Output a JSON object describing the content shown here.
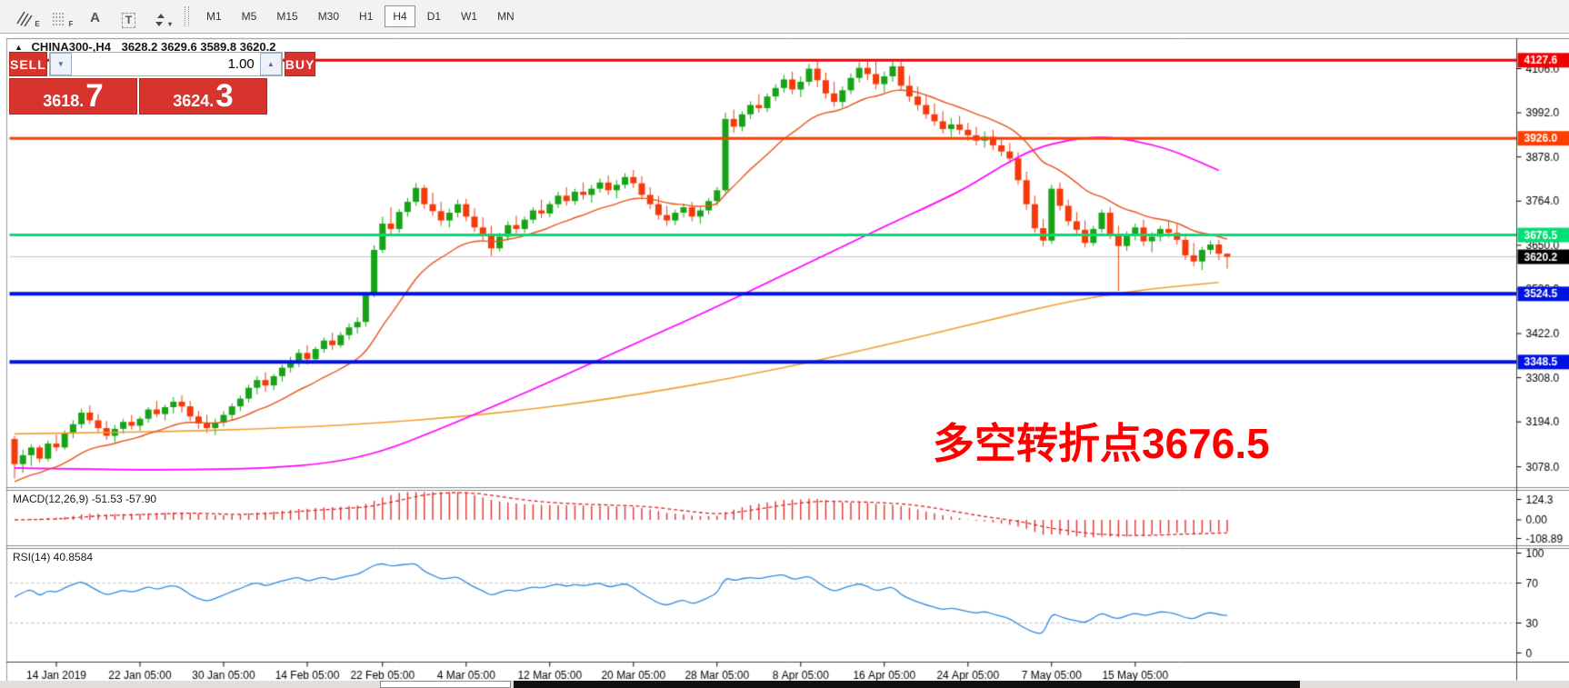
{
  "toolbar": {
    "icons": [
      {
        "name": "equidistant-channel-icon",
        "sub": "E"
      },
      {
        "name": "fibonacci-grid-icon",
        "sub": "F"
      },
      {
        "name": "text-label-icon",
        "glyph": "A"
      },
      {
        "name": "text-box-icon",
        "glyph": "T"
      },
      {
        "name": "arrange-objects-icon",
        "caret": "▾"
      }
    ],
    "timeframes": [
      "M1",
      "M5",
      "M15",
      "M30",
      "H1",
      "H4",
      "D1",
      "W1",
      "MN"
    ],
    "active_timeframe": "H4"
  },
  "chart_title": {
    "collapse_icon": "▲",
    "symbol_tf": "CHINA300-,H4",
    "ohlc": "3628.2 3629.6 3589.8 3620.2"
  },
  "trade_panel": {
    "sell_label": "SELL",
    "buy_label": "BUY",
    "volume": "1.00",
    "volume_down_icon": "▼",
    "volume_up_icon": "▲",
    "sell_price": {
      "main": "3618.",
      "pips": "7"
    },
    "buy_price": {
      "main": "3624.",
      "pips": "3"
    }
  },
  "annotation": {
    "text": "多空转折点3676.5",
    "color": "#ff0000"
  },
  "indicators": {
    "macd_label": "MACD(12,26,9) -51.53 -57.90",
    "rsi_label": "RSI(14) 40.8584",
    "macd_axis": {
      "labels": [
        "124.3",
        "0.00",
        "-108.89"
      ],
      "values": [
        124.3,
        0,
        -108.89
      ]
    },
    "rsi_axis": {
      "labels": [
        "100",
        "70",
        "30",
        "0"
      ],
      "values": [
        100,
        70,
        30,
        0
      ]
    }
  },
  "price_axis": {
    "ticks": [
      {
        "label": "4106.0",
        "value": 4106.0
      },
      {
        "label": "3992.0",
        "value": 3992.0
      },
      {
        "label": "3878.0",
        "value": 3878.0
      },
      {
        "label": "3764.0",
        "value": 3764.0
      },
      {
        "label": "3650.0",
        "value": 3650.0
      },
      {
        "label": "3536.0",
        "value": 3536.0
      },
      {
        "label": "3422.0",
        "value": 3422.0
      },
      {
        "label": "3308.0",
        "value": 3308.0
      },
      {
        "label": "3194.0",
        "value": 3194.0
      },
      {
        "label": "3078.0",
        "value": 3078.0
      }
    ],
    "badges": [
      {
        "label": "4127.6",
        "value": 4127.6,
        "bg": "#f00000",
        "fg": "#ffffff"
      },
      {
        "label": "3926.0",
        "value": 3926.0,
        "bg": "#ff3d00",
        "fg": "#ffffff"
      },
      {
        "label": "3676.5",
        "value": 3676.5,
        "bg": "#00df75",
        "fg": "#ffffff"
      },
      {
        "label": "3620.2",
        "value": 3620.2,
        "bg": "#000000",
        "fg": "#ffffff"
      },
      {
        "label": "3524.5",
        "value": 3524.5,
        "bg": "#0012e0",
        "fg": "#ffffff"
      },
      {
        "label": "3348.5",
        "value": 3348.5,
        "bg": "#0012e0",
        "fg": "#ffffff"
      }
    ]
  },
  "time_axis": {
    "labels": [
      "14 Jan 2019",
      "22 Jan 05:00",
      "30 Jan 05:00",
      "14 Feb 05:00",
      "22 Feb 05:00",
      "4 Mar 05:00",
      "12 Mar 05:00",
      "20 Mar 05:00",
      "28 Mar 05:00",
      "8 Apr 05:00",
      "16 Apr 05:00",
      "24 Apr 05:00",
      "7 May 05:00",
      "15 May 05:00"
    ],
    "tick_bars": [
      5,
      15,
      25,
      35,
      44,
      54,
      64,
      74,
      84,
      94,
      104,
      114,
      124,
      134
    ]
  },
  "chart_data": {
    "type": "candlestick",
    "symbol": "CHINA300-",
    "timeframe": "H4",
    "last_ohlc": {
      "open": 3628.2,
      "high": 3629.6,
      "low": 3589.8,
      "close": 3620.2
    },
    "candle_up_color": "#17a317",
    "candle_down_color": "#f53a0a",
    "candles": [
      [
        3150,
        3158,
        3048,
        3085
      ],
      [
        3085,
        3122,
        3062,
        3108
      ],
      [
        3108,
        3136,
        3080,
        3128
      ],
      [
        3128,
        3134,
        3089,
        3099
      ],
      [
        3099,
        3146,
        3092,
        3138
      ],
      [
        3138,
        3162,
        3118,
        3128
      ],
      [
        3128,
        3172,
        3122,
        3164
      ],
      [
        3164,
        3198,
        3152,
        3188
      ],
      [
        3188,
        3228,
        3178,
        3218
      ],
      [
        3218,
        3236,
        3188,
        3198
      ],
      [
        3198,
        3214,
        3168,
        3178
      ],
      [
        3178,
        3196,
        3148,
        3158
      ],
      [
        3158,
        3186,
        3142,
        3176
      ],
      [
        3176,
        3202,
        3164,
        3194
      ],
      [
        3194,
        3212,
        3174,
        3184
      ],
      [
        3184,
        3208,
        3170,
        3202
      ],
      [
        3202,
        3232,
        3192,
        3226
      ],
      [
        3226,
        3248,
        3206,
        3214
      ],
      [
        3214,
        3238,
        3198,
        3232
      ],
      [
        3232,
        3258,
        3216,
        3246
      ],
      [
        3246,
        3262,
        3218,
        3234
      ],
      [
        3234,
        3248,
        3196,
        3208
      ],
      [
        3208,
        3222,
        3176,
        3190
      ],
      [
        3190,
        3212,
        3166,
        3178
      ],
      [
        3178,
        3202,
        3160,
        3192
      ],
      [
        3192,
        3222,
        3182,
        3212
      ],
      [
        3212,
        3242,
        3198,
        3234
      ],
      [
        3234,
        3262,
        3222,
        3254
      ],
      [
        3254,
        3290,
        3244,
        3282
      ],
      [
        3282,
        3312,
        3266,
        3302
      ],
      [
        3302,
        3322,
        3272,
        3288
      ],
      [
        3288,
        3318,
        3276,
        3312
      ],
      [
        3312,
        3342,
        3298,
        3334
      ],
      [
        3334,
        3362,
        3322,
        3352
      ],
      [
        3352,
        3382,
        3336,
        3372
      ],
      [
        3372,
        3392,
        3342,
        3356
      ],
      [
        3356,
        3388,
        3346,
        3382
      ],
      [
        3382,
        3412,
        3372,
        3404
      ],
      [
        3404,
        3424,
        3380,
        3392
      ],
      [
        3392,
        3426,
        3386,
        3418
      ],
      [
        3418,
        3448,
        3406,
        3438
      ],
      [
        3438,
        3464,
        3422,
        3452
      ],
      [
        3452,
        3530,
        3440,
        3524
      ],
      [
        3524,
        3650,
        3516,
        3638
      ],
      [
        3638,
        3724,
        3630,
        3706
      ],
      [
        3706,
        3748,
        3676,
        3692
      ],
      [
        3692,
        3744,
        3682,
        3736
      ],
      [
        3736,
        3772,
        3724,
        3762
      ],
      [
        3762,
        3810,
        3752,
        3798
      ],
      [
        3798,
        3806,
        3744,
        3756
      ],
      [
        3756,
        3786,
        3726,
        3738
      ],
      [
        3738,
        3762,
        3700,
        3714
      ],
      [
        3714,
        3744,
        3696,
        3734
      ],
      [
        3734,
        3768,
        3722,
        3756
      ],
      [
        3756,
        3770,
        3712,
        3724
      ],
      [
        3724,
        3746,
        3684,
        3696
      ],
      [
        3696,
        3722,
        3660,
        3674
      ],
      [
        3674,
        3700,
        3622,
        3642
      ],
      [
        3642,
        3682,
        3634,
        3672
      ],
      [
        3672,
        3712,
        3662,
        3702
      ],
      [
        3702,
        3726,
        3678,
        3692
      ],
      [
        3692,
        3724,
        3682,
        3716
      ],
      [
        3716,
        3748,
        3706,
        3740
      ],
      [
        3740,
        3768,
        3720,
        3732
      ],
      [
        3732,
        3764,
        3722,
        3756
      ],
      [
        3756,
        3788,
        3746,
        3778
      ],
      [
        3778,
        3800,
        3752,
        3764
      ],
      [
        3764,
        3796,
        3754,
        3788
      ],
      [
        3788,
        3812,
        3768,
        3780
      ],
      [
        3780,
        3806,
        3760,
        3796
      ],
      [
        3796,
        3822,
        3786,
        3812
      ],
      [
        3812,
        3830,
        3780,
        3792
      ],
      [
        3792,
        3818,
        3772,
        3806
      ],
      [
        3806,
        3836,
        3796,
        3826
      ],
      [
        3826,
        3844,
        3798,
        3810
      ],
      [
        3810,
        3828,
        3768,
        3780
      ],
      [
        3780,
        3800,
        3744,
        3756
      ],
      [
        3756,
        3778,
        3716,
        3728
      ],
      [
        3728,
        3752,
        3700,
        3714
      ],
      [
        3714,
        3742,
        3702,
        3734
      ],
      [
        3734,
        3758,
        3722,
        3748
      ],
      [
        3748,
        3762,
        3712,
        3724
      ],
      [
        3724,
        3748,
        3706,
        3740
      ],
      [
        3740,
        3772,
        3730,
        3764
      ],
      [
        3764,
        3800,
        3752,
        3792
      ],
      [
        3792,
        3992,
        3786,
        3976
      ],
      [
        3976,
        4000,
        3940,
        3956
      ],
      [
        3956,
        3996,
        3944,
        3988
      ],
      [
        3988,
        4022,
        3976,
        4012
      ],
      [
        4012,
        4040,
        3992,
        4004
      ],
      [
        4004,
        4042,
        3994,
        4034
      ],
      [
        4034,
        4066,
        4022,
        4056
      ],
      [
        4056,
        4090,
        4044,
        4078
      ],
      [
        4078,
        4098,
        4040,
        4052
      ],
      [
        4052,
        4086,
        4032,
        4072
      ],
      [
        4072,
        4118,
        4062,
        4106
      ],
      [
        4106,
        4127,
        4058,
        4076
      ],
      [
        4076,
        4096,
        4028,
        4042
      ],
      [
        4042,
        4072,
        4008,
        4020
      ],
      [
        4020,
        4060,
        4006,
        4050
      ],
      [
        4050,
        4094,
        4040,
        4082
      ],
      [
        4082,
        4122,
        4070,
        4108
      ],
      [
        4108,
        4130,
        4076,
        4092
      ],
      [
        4092,
        4126,
        4052,
        4066
      ],
      [
        4066,
        4098,
        4044,
        4086
      ],
      [
        4086,
        4127,
        4072,
        4112
      ],
      [
        4112,
        4124,
        4050,
        4062
      ],
      [
        4062,
        4088,
        4020,
        4034
      ],
      [
        4034,
        4060,
        3998,
        4012
      ],
      [
        4012,
        4038,
        3976,
        3988
      ],
      [
        3988,
        4016,
        3958,
        3970
      ],
      [
        3970,
        3996,
        3938,
        3950
      ],
      [
        3950,
        3978,
        3930,
        3962
      ],
      [
        3962,
        3984,
        3936,
        3948
      ],
      [
        3948,
        3966,
        3920,
        3934
      ],
      [
        3934,
        3956,
        3908,
        3920
      ],
      [
        3920,
        3944,
        3902,
        3930
      ],
      [
        3930,
        3948,
        3896,
        3908
      ],
      [
        3908,
        3930,
        3880,
        3892
      ],
      [
        3892,
        3914,
        3862,
        3874
      ],
      [
        3874,
        3890,
        3806,
        3818
      ],
      [
        3818,
        3840,
        3742,
        3756
      ],
      [
        3756,
        3778,
        3682,
        3694
      ],
      [
        3694,
        3718,
        3648,
        3662
      ],
      [
        3662,
        3806,
        3654,
        3796
      ],
      [
        3796,
        3812,
        3740,
        3752
      ],
      [
        3752,
        3768,
        3700,
        3712
      ],
      [
        3712,
        3736,
        3678,
        3690
      ],
      [
        3690,
        3714,
        3644,
        3656
      ],
      [
        3656,
        3700,
        3648,
        3692
      ],
      [
        3692,
        3742,
        3682,
        3734
      ],
      [
        3734,
        3748,
        3666,
        3678
      ],
      [
        3678,
        3700,
        3532,
        3648
      ],
      [
        3648,
        3686,
        3636,
        3674
      ],
      [
        3674,
        3706,
        3662,
        3696
      ],
      [
        3696,
        3716,
        3648,
        3660
      ],
      [
        3660,
        3684,
        3632,
        3672
      ],
      [
        3672,
        3700,
        3660,
        3692
      ],
      [
        3692,
        3712,
        3670,
        3682
      ],
      [
        3682,
        3706,
        3652,
        3664
      ],
      [
        3664,
        3680,
        3612,
        3624
      ],
      [
        3624,
        3656,
        3596,
        3608
      ],
      [
        3608,
        3646,
        3586,
        3638
      ],
      [
        3638,
        3662,
        3626,
        3652
      ],
      [
        3652,
        3664,
        3612,
        3628
      ],
      [
        3628.2,
        3629.6,
        3589.8,
        3620.2
      ]
    ],
    "hlines": [
      {
        "price": 4127.6,
        "color": "#f00000",
        "width": 3
      },
      {
        "price": 3926.0,
        "color": "#ff3d00",
        "width": 3
      },
      {
        "price": 3676.5,
        "color": "#00df75",
        "width": 3
      },
      {
        "price": 3524.5,
        "color": "#0012e0",
        "width": 4
      },
      {
        "price": 3348.5,
        "color": "#0012e0",
        "width": 4
      },
      {
        "price": 3620.2,
        "color": "#c4c4c4",
        "width": 1,
        "role": "current"
      }
    ],
    "ma_lines": [
      {
        "name": "slow-ma",
        "color": "#efa030",
        "width": 1.6,
        "points": [
          [
            0,
            3163
          ],
          [
            10,
            3166
          ],
          [
            20,
            3170
          ],
          [
            28,
            3175
          ],
          [
            36,
            3182
          ],
          [
            44,
            3192
          ],
          [
            52,
            3205
          ],
          [
            60,
            3222
          ],
          [
            68,
            3244
          ],
          [
            76,
            3270
          ],
          [
            84,
            3300
          ],
          [
            92,
            3334
          ],
          [
            100,
            3372
          ],
          [
            108,
            3412
          ],
          [
            116,
            3454
          ],
          [
            124,
            3495
          ],
          [
            130,
            3520
          ],
          [
            136,
            3538
          ],
          [
            141,
            3548
          ],
          [
            144,
            3554
          ]
        ]
      },
      {
        "name": "mid-ma",
        "color": "#ff00ff",
        "width": 1.7,
        "points": [
          [
            0,
            3075
          ],
          [
            10,
            3071
          ],
          [
            20,
            3070
          ],
          [
            30,
            3074
          ],
          [
            38,
            3088
          ],
          [
            44,
            3118
          ],
          [
            50,
            3168
          ],
          [
            56,
            3222
          ],
          [
            62,
            3278
          ],
          [
            68,
            3336
          ],
          [
            74,
            3394
          ],
          [
            80,
            3452
          ],
          [
            86,
            3512
          ],
          [
            92,
            3574
          ],
          [
            98,
            3636
          ],
          [
            104,
            3698
          ],
          [
            110,
            3758
          ],
          [
            114,
            3800
          ],
          [
            118,
            3855
          ],
          [
            122,
            3900
          ],
          [
            126,
            3922
          ],
          [
            130,
            3931
          ],
          [
            134,
            3920
          ],
          [
            138,
            3898
          ],
          [
            141,
            3872
          ],
          [
            144,
            3843
          ]
        ]
      },
      {
        "name": "fast-ma",
        "color": "#e8531b",
        "width": 1.4,
        "compute": "ema",
        "period": 16,
        "seed": 3034
      }
    ],
    "macd": {
      "fast": 12,
      "slow": 26,
      "signal_period": 9,
      "current": [
        -51.53,
        -57.9
      ],
      "range": [
        124.3,
        -108.89
      ],
      "histogram_color": "#e23333",
      "signal_color": "#dd2222"
    },
    "rsi": {
      "period": 14,
      "current": 40.8584,
      "color": "#2e8be0",
      "levels": [
        70,
        30
      ]
    }
  }
}
